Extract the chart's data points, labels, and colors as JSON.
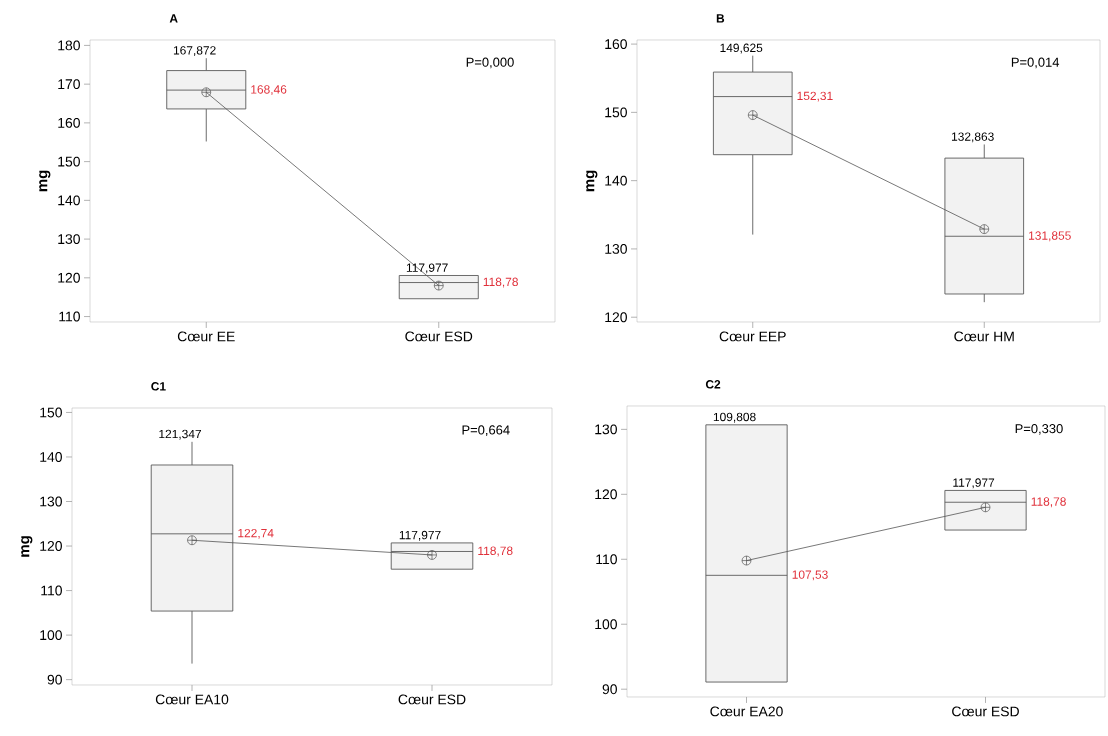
{
  "chart_data": [
    {
      "type": "box",
      "title": "A",
      "ylabel": "mg",
      "categories": [
        "Cœur EE",
        "Cœur ESD"
      ],
      "ylim": [
        108.6,
        181.4
      ],
      "yticks": [
        110,
        120,
        130,
        140,
        150,
        160,
        170,
        180
      ],
      "marker": "cross",
      "boxes": [
        {
          "low": 155.2,
          "q1": 163.6,
          "median": 168.46,
          "q3": 173.5,
          "high": 176.7
        },
        {
          "low": 114.6,
          "q1": 114.6,
          "median": 118.78,
          "q3": 120.6,
          "high": 120.6
        }
      ],
      "series": [
        {
          "type": "line",
          "color": "#555555",
          "values": [
            167.9,
            118.0
          ]
        }
      ],
      "annotations": [
        "P=0,000",
        "167,872",
        "168,46",
        "117,977",
        "118,78"
      ]
    },
    {
      "type": "box",
      "title": "B",
      "ylabel": "mg",
      "categories": [
        "Cœur EEP",
        "Cœur HM"
      ],
      "ylim": [
        119.3,
        160.6
      ],
      "yticks": [
        120,
        130,
        140,
        150,
        160
      ],
      "marker": "cross",
      "boxes": [
        {
          "low": 132.1,
          "q1": 143.8,
          "median": 152.31,
          "q3": 155.9,
          "high": 158.3
        },
        {
          "low": 122.2,
          "q1": 123.4,
          "median": 131.855,
          "q3": 143.3,
          "high": 145.3
        }
      ],
      "series": [
        {
          "type": "line",
          "color": "#555555",
          "values": [
            149.6,
            132.9
          ]
        }
      ],
      "annotations": [
        "P=0,014",
        "149,625",
        "152,31",
        "132,863",
        "131,855"
      ]
    },
    {
      "type": "box",
      "title": "C1",
      "ylabel": "mg",
      "categories": [
        "Cœur EA10",
        "Cœur ESD"
      ],
      "ylim": [
        88.8,
        151.0
      ],
      "yticks": [
        90,
        100,
        110,
        120,
        130,
        140,
        150
      ],
      "marker": "cross",
      "boxes": [
        {
          "low": 93.6,
          "q1": 105.4,
          "median": 122.74,
          "q3": 138.2,
          "high": 143.4
        },
        {
          "low": 114.8,
          "q1": 114.8,
          "median": 118.78,
          "q3": 120.7,
          "high": 120.7
        }
      ],
      "series": [
        {
          "type": "line",
          "color": "#555555",
          "values": [
            121.3,
            118.0
          ]
        }
      ],
      "annotations": [
        "P=0,664",
        "121,347",
        "122,74",
        "117,977",
        "118,78"
      ]
    },
    {
      "type": "box",
      "title": "C2",
      "categories": [
        "Cœur EA20",
        "Cœur ESD"
      ],
      "ylim": [
        88.8,
        133.6
      ],
      "yticks": [
        90,
        100,
        110,
        120,
        130
      ],
      "marker": "cross",
      "boxes": [
        {
          "low": 91.1,
          "q1": 91.1,
          "median": 107.53,
          "q3": 130.7,
          "high": 130.7
        },
        {
          "low": 114.5,
          "q1": 114.5,
          "median": 118.78,
          "q3": 120.6,
          "high": 120.6
        }
      ],
      "series": [
        {
          "type": "line",
          "color": "#555555",
          "values": [
            109.8,
            118.0
          ]
        }
      ],
      "annotations": [
        "P=0,330",
        "109,808",
        "107,53",
        "117,977",
        "118,78"
      ]
    }
  ]
}
